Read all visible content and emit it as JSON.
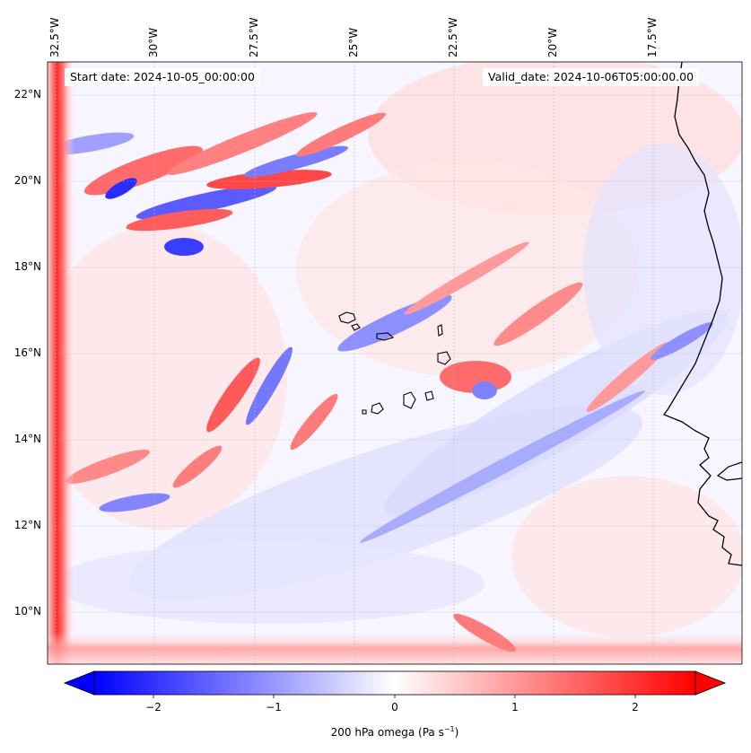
{
  "map": {
    "start_label": "Start date: 2024-10-05_00:00:00",
    "valid_label": "Valid_date: 2024-10-06T05:00:00.00",
    "longitude_ticks": [
      "32.5°W",
      "30°W",
      "27.5°W",
      "25°W",
      "22.5°W",
      "20°W",
      "17.5°W"
    ],
    "latitude_ticks": [
      "22°N",
      "20°N",
      "18°N",
      "16°N",
      "14°N",
      "12°N",
      "10°N"
    ],
    "features": [
      "Cape Verde islands",
      "West African coastline"
    ]
  },
  "colorbar": {
    "label": "200 hPa omega (Pa s",
    "label_sup": "−1",
    "label_end": ")",
    "ticks": [
      "−2",
      "−1",
      "0",
      "1",
      "2"
    ],
    "cmap": "bwr",
    "range": [
      -2.6,
      2.6
    ],
    "extend": "both",
    "colors": {
      "negative": "#0000ff",
      "zero": "#ffffff",
      "positive": "#ff0000"
    }
  }
}
